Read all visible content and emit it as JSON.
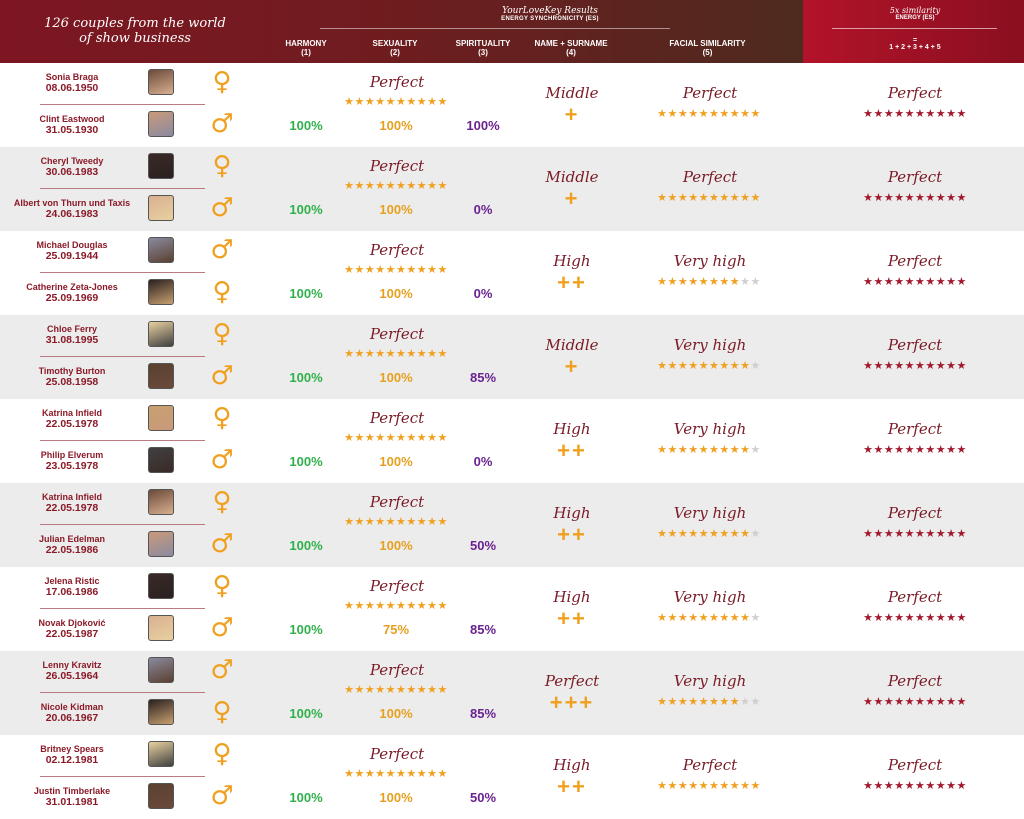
{
  "header": {
    "title": "126 couples from the world of show business",
    "es_brand": "YourLoveKey Results",
    "es_sub": "ENERGY SYNCHRONICITY (ES)",
    "columns": [
      {
        "label": "HARMONY",
        "num": "(1)"
      },
      {
        "label": "SEXUALITY",
        "num": "(2)"
      },
      {
        "label": "SPIRITUALITY",
        "num": "(3)"
      },
      {
        "label": "NAME + SURNAME",
        "num": "(4)"
      },
      {
        "label": "FACIAL SIMILARITY",
        "num": "(5)"
      }
    ],
    "fivex_title": "5x similarity",
    "fivex_sub": "ENERGY (ES)",
    "fivex_eq": "=",
    "fivex_sum": "1 + 2 + 3 + 4 + 5"
  },
  "colors": {
    "green": "#2fb04a",
    "gold": "#e6a020",
    "purple": "#6a2290",
    "maroon": "#8b1a28"
  },
  "couples": [
    {
      "p1": {
        "name": "Sonia Braga",
        "date": "08.06.1950",
        "gender": "♀"
      },
      "p2": {
        "name": "Clint Eastwood",
        "date": "31.05.1930",
        "gender": "♂"
      },
      "es_label": "Perfect",
      "es_stars": 10,
      "harmony": "100%",
      "sexuality": "100%",
      "spirituality": "100%",
      "name_label": "Middle",
      "name_plus": "+",
      "face_label": "Perfect",
      "face_stars": 10,
      "total_label": "Perfect",
      "total_stars": 10
    },
    {
      "p1": {
        "name": "Cheryl Tweedy",
        "date": "30.06.1983",
        "gender": "♀"
      },
      "p2": {
        "name": "Albert von Thurn und Taxis",
        "date": "24.06.1983",
        "gender": "♂"
      },
      "es_label": "Perfect",
      "es_stars": 10,
      "harmony": "100%",
      "sexuality": "100%",
      "spirituality": "0%",
      "name_label": "Middle",
      "name_plus": "+",
      "face_label": "Perfect",
      "face_stars": 10,
      "total_label": "Perfect",
      "total_stars": 10
    },
    {
      "p1": {
        "name": "Michael Douglas",
        "date": "25.09.1944",
        "gender": "♂"
      },
      "p2": {
        "name": "Catherine Zeta-Jones",
        "date": "25.09.1969",
        "gender": "♀"
      },
      "es_label": "Perfect",
      "es_stars": 10,
      "harmony": "100%",
      "sexuality": "100%",
      "spirituality": "0%",
      "name_label": "High",
      "name_plus": "++",
      "face_label": "Very high",
      "face_stars": 8,
      "total_label": "Perfect",
      "total_stars": 10
    },
    {
      "p1": {
        "name": "Chloe Ferry",
        "date": "31.08.1995",
        "gender": "♀"
      },
      "p2": {
        "name": "Timothy Burton",
        "date": "25.08.1958",
        "gender": "♂"
      },
      "es_label": "Perfect",
      "es_stars": 10,
      "harmony": "100%",
      "sexuality": "100%",
      "spirituality": "85%",
      "name_label": "Middle",
      "name_plus": "+",
      "face_label": "Very high",
      "face_stars": 9,
      "total_label": "Perfect",
      "total_stars": 10
    },
    {
      "p1": {
        "name": "Katrina Infield",
        "date": "22.05.1978",
        "gender": "♀"
      },
      "p2": {
        "name": "Philip Elverum",
        "date": "23.05.1978",
        "gender": "♂"
      },
      "es_label": "Perfect",
      "es_stars": 10,
      "harmony": "100%",
      "sexuality": "100%",
      "spirituality": "0%",
      "name_label": "High",
      "name_plus": "++",
      "face_label": "Very high",
      "face_stars": 9,
      "total_label": "Perfect",
      "total_stars": 10
    },
    {
      "p1": {
        "name": "Katrina Infield",
        "date": "22.05.1978",
        "gender": "♀"
      },
      "p2": {
        "name": "Julian Edelman",
        "date": "22.05.1986",
        "gender": "♂"
      },
      "es_label": "Perfect",
      "es_stars": 10,
      "harmony": "100%",
      "sexuality": "100%",
      "spirituality": "50%",
      "name_label": "High",
      "name_plus": "++",
      "face_label": "Very high",
      "face_stars": 9,
      "total_label": "Perfect",
      "total_stars": 10
    },
    {
      "p1": {
        "name": "Jelena Ristic",
        "date": "17.06.1986",
        "gender": "♀"
      },
      "p2": {
        "name": "Novak Djoković",
        "date": "22.05.1987",
        "gender": "♂"
      },
      "es_label": "Perfect",
      "es_stars": 10,
      "harmony": "100%",
      "sexuality": "75%",
      "spirituality": "85%",
      "name_label": "High",
      "name_plus": "++",
      "face_label": "Very high",
      "face_stars": 9,
      "total_label": "Perfect",
      "total_stars": 10
    },
    {
      "p1": {
        "name": "Lenny Kravitz",
        "date": "26.05.1964",
        "gender": "♂"
      },
      "p2": {
        "name": "Nicole Kidman",
        "date": "20.06.1967",
        "gender": "♀"
      },
      "es_label": "Perfect",
      "es_stars": 10,
      "harmony": "100%",
      "sexuality": "100%",
      "spirituality": "85%",
      "name_label": "Perfect",
      "name_plus": "+++",
      "face_label": "Very high",
      "face_stars": 8,
      "total_label": "Perfect",
      "total_stars": 10
    },
    {
      "p1": {
        "name": "Britney Spears",
        "date": "02.12.1981",
        "gender": "♀"
      },
      "p2": {
        "name": "Justin Timberlake",
        "date": "31.01.1981",
        "gender": "♂"
      },
      "es_label": "Perfect",
      "es_stars": 10,
      "harmony": "100%",
      "sexuality": "100%",
      "spirituality": "50%",
      "name_label": "High",
      "name_plus": "++",
      "face_label": "Perfect",
      "face_stars": 10,
      "total_label": "Perfect",
      "total_stars": 10
    }
  ]
}
